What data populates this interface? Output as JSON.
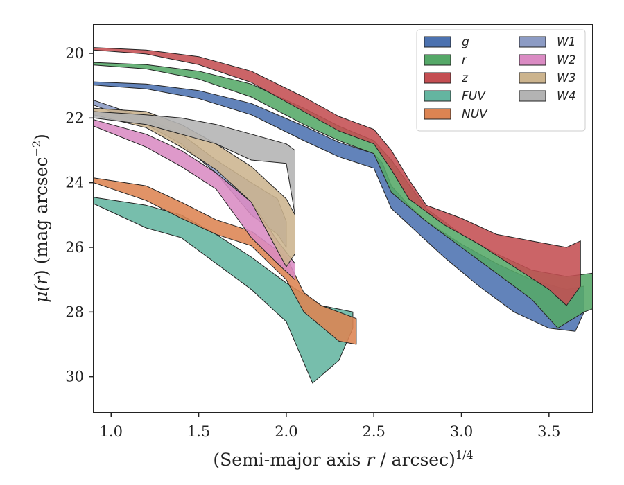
{
  "chart_data": {
    "type": "area",
    "title": "",
    "xlabel_main": "(Semi-major axis ",
    "xlabel_var": "r",
    "xlabel_rest": " / arcsec)",
    "xlabel_sup": "1/4",
    "ylabel_mu": "μ(",
    "ylabel_var": "r",
    "ylabel_rest": ") (mag arcsec",
    "ylabel_sup": "−2",
    "ylabel_close": ")",
    "xlim": [
      0.9,
      3.75
    ],
    "ylim": [
      31.1,
      19.1
    ],
    "y_inverted": true,
    "grid": false,
    "legend_position": "upper-right",
    "legend_columns": 2,
    "xticks": [
      1.0,
      1.5,
      2.0,
      2.5,
      3.0,
      3.5
    ],
    "xtick_labels": [
      "1.0",
      "1.5",
      "2.0",
      "2.5",
      "3.0",
      "3.5"
    ],
    "yticks": [
      20,
      22,
      24,
      26,
      28,
      30
    ],
    "ytick_labels": [
      "20",
      "22",
      "24",
      "26",
      "28",
      "30"
    ],
    "series": [
      {
        "name": "g",
        "color": "#4c72b0",
        "upper": [
          [
            0.9,
            20.88
          ],
          [
            1.2,
            20.95
          ],
          [
            1.5,
            21.15
          ],
          [
            1.8,
            21.55
          ],
          [
            2.1,
            22.25
          ],
          [
            2.3,
            22.75
          ],
          [
            2.5,
            23.1
          ],
          [
            2.55,
            23.4
          ],
          [
            2.6,
            24.1
          ],
          [
            2.7,
            24.7
          ],
          [
            2.8,
            25.2
          ],
          [
            3.0,
            25.9
          ],
          [
            3.2,
            26.5
          ],
          [
            3.4,
            27.0
          ],
          [
            3.6,
            27.3
          ],
          [
            3.7,
            27.2
          ]
        ],
        "lower": [
          [
            0.9,
            20.98
          ],
          [
            1.2,
            21.1
          ],
          [
            1.5,
            21.4
          ],
          [
            1.8,
            21.9
          ],
          [
            2.1,
            22.7
          ],
          [
            2.3,
            23.2
          ],
          [
            2.5,
            23.55
          ],
          [
            2.6,
            24.8
          ],
          [
            2.7,
            25.3
          ],
          [
            2.9,
            26.3
          ],
          [
            3.1,
            27.2
          ],
          [
            3.3,
            28.0
          ],
          [
            3.5,
            28.5
          ],
          [
            3.65,
            28.6
          ],
          [
            3.7,
            28.0
          ]
        ]
      },
      {
        "name": "r",
        "color": "#55a868",
        "upper": [
          [
            0.9,
            20.28
          ],
          [
            1.2,
            20.35
          ],
          [
            1.5,
            20.55
          ],
          [
            1.8,
            20.95
          ],
          [
            2.1,
            21.7
          ],
          [
            2.3,
            22.25
          ],
          [
            2.5,
            22.7
          ],
          [
            2.6,
            23.3
          ],
          [
            2.8,
            24.8
          ],
          [
            3.0,
            25.6
          ],
          [
            3.2,
            26.2
          ],
          [
            3.4,
            26.7
          ],
          [
            3.6,
            26.9
          ],
          [
            3.75,
            26.8
          ]
        ],
        "lower": [
          [
            0.9,
            20.36
          ],
          [
            1.2,
            20.48
          ],
          [
            1.5,
            20.8
          ],
          [
            1.8,
            21.35
          ],
          [
            2.1,
            22.2
          ],
          [
            2.3,
            22.7
          ],
          [
            2.5,
            23.1
          ],
          [
            2.6,
            24.3
          ],
          [
            2.8,
            25.2
          ],
          [
            3.0,
            26.0
          ],
          [
            3.2,
            26.8
          ],
          [
            3.4,
            27.6
          ],
          [
            3.55,
            28.5
          ],
          [
            3.7,
            28.0
          ],
          [
            3.75,
            27.9
          ]
        ]
      },
      {
        "name": "z",
        "color": "#c44e52",
        "upper": [
          [
            0.9,
            19.82
          ],
          [
            1.2,
            19.9
          ],
          [
            1.5,
            20.1
          ],
          [
            1.8,
            20.55
          ],
          [
            2.1,
            21.35
          ],
          [
            2.3,
            21.95
          ],
          [
            2.5,
            22.35
          ],
          [
            2.6,
            23.0
          ],
          [
            2.7,
            23.9
          ],
          [
            2.8,
            24.7
          ],
          [
            3.0,
            25.1
          ],
          [
            3.2,
            25.6
          ],
          [
            3.4,
            25.8
          ],
          [
            3.6,
            26.0
          ],
          [
            3.68,
            25.8
          ]
        ],
        "lower": [
          [
            0.9,
            19.9
          ],
          [
            1.2,
            20.02
          ],
          [
            1.5,
            20.35
          ],
          [
            1.8,
            20.9
          ],
          [
            2.1,
            21.8
          ],
          [
            2.3,
            22.4
          ],
          [
            2.5,
            22.8
          ],
          [
            2.6,
            23.6
          ],
          [
            2.7,
            24.5
          ],
          [
            2.9,
            25.3
          ],
          [
            3.1,
            25.9
          ],
          [
            3.3,
            26.6
          ],
          [
            3.5,
            27.3
          ],
          [
            3.6,
            27.8
          ],
          [
            3.68,
            27.2
          ]
        ]
      },
      {
        "name": "FUV",
        "color": "#64b5a0",
        "upper": [
          [
            0.9,
            24.45
          ],
          [
            1.2,
            24.7
          ],
          [
            1.4,
            25.0
          ],
          [
            1.6,
            25.6
          ],
          [
            1.8,
            26.3
          ],
          [
            2.0,
            27.1
          ],
          [
            2.2,
            27.8
          ],
          [
            2.38,
            28.0
          ]
        ],
        "lower": [
          [
            0.9,
            24.65
          ],
          [
            1.2,
            25.4
          ],
          [
            1.4,
            25.7
          ],
          [
            1.6,
            26.5
          ],
          [
            1.8,
            27.3
          ],
          [
            2.0,
            28.3
          ],
          [
            2.15,
            30.2
          ],
          [
            2.3,
            29.5
          ],
          [
            2.38,
            28.5
          ]
        ]
      },
      {
        "name": "NUV",
        "color": "#dd8452",
        "upper": [
          [
            0.9,
            23.85
          ],
          [
            1.2,
            24.1
          ],
          [
            1.4,
            24.6
          ],
          [
            1.6,
            25.15
          ],
          [
            1.8,
            25.5
          ],
          [
            2.0,
            26.3
          ],
          [
            2.1,
            27.4
          ],
          [
            2.2,
            27.8
          ],
          [
            2.4,
            28.2
          ]
        ],
        "lower": [
          [
            0.9,
            24.0
          ],
          [
            1.2,
            24.55
          ],
          [
            1.4,
            25.1
          ],
          [
            1.6,
            25.6
          ],
          [
            1.8,
            25.95
          ],
          [
            2.0,
            27.0
          ],
          [
            2.1,
            28.0
          ],
          [
            2.3,
            28.9
          ],
          [
            2.4,
            29.0
          ]
        ]
      },
      {
        "name": "W1",
        "color": "#8c9bc4",
        "upper": [
          [
            0.9,
            21.45
          ],
          [
            1.2,
            22.0
          ],
          [
            1.4,
            22.5
          ],
          [
            1.6,
            23.3
          ],
          [
            1.8,
            24.0
          ],
          [
            1.95,
            24.5
          ],
          [
            2.0,
            25.2
          ]
        ],
        "lower": [
          [
            0.9,
            21.6
          ],
          [
            1.2,
            22.2
          ],
          [
            1.4,
            22.8
          ],
          [
            1.6,
            23.7
          ],
          [
            1.8,
            25.0
          ],
          [
            1.95,
            25.6
          ],
          [
            2.0,
            26.0
          ]
        ]
      },
      {
        "name": "W2",
        "color": "#da8bc3",
        "upper": [
          [
            0.9,
            22.05
          ],
          [
            1.2,
            22.5
          ],
          [
            1.4,
            23.0
          ],
          [
            1.6,
            23.7
          ],
          [
            1.8,
            24.6
          ],
          [
            1.95,
            25.8
          ],
          [
            2.05,
            26.5
          ]
        ],
        "lower": [
          [
            0.9,
            22.25
          ],
          [
            1.2,
            22.9
          ],
          [
            1.4,
            23.5
          ],
          [
            1.6,
            24.2
          ],
          [
            1.8,
            25.7
          ],
          [
            1.95,
            26.5
          ],
          [
            2.05,
            27.0
          ]
        ]
      },
      {
        "name": "W3",
        "color": "#ccb48e",
        "upper": [
          [
            0.9,
            21.7
          ],
          [
            1.2,
            21.8
          ],
          [
            1.4,
            22.2
          ],
          [
            1.6,
            22.8
          ],
          [
            1.8,
            23.5
          ],
          [
            2.0,
            24.5
          ],
          [
            2.05,
            25.0
          ]
        ],
        "lower": [
          [
            0.9,
            21.9
          ],
          [
            1.2,
            22.3
          ],
          [
            1.4,
            22.9
          ],
          [
            1.6,
            23.6
          ],
          [
            1.8,
            24.6
          ],
          [
            2.0,
            26.6
          ],
          [
            2.05,
            26.2
          ]
        ]
      },
      {
        "name": "W4",
        "color": "#b3b3b3",
        "upper": [
          [
            0.9,
            21.8
          ],
          [
            1.2,
            21.9
          ],
          [
            1.4,
            22.0
          ],
          [
            1.6,
            22.2
          ],
          [
            1.8,
            22.5
          ],
          [
            2.0,
            22.8
          ],
          [
            2.05,
            23.0
          ]
        ],
        "lower": [
          [
            0.9,
            22.0
          ],
          [
            1.2,
            22.2
          ],
          [
            1.4,
            22.5
          ],
          [
            1.6,
            22.8
          ],
          [
            1.8,
            23.3
          ],
          [
            2.0,
            23.4
          ],
          [
            2.05,
            25.0
          ]
        ]
      }
    ]
  }
}
